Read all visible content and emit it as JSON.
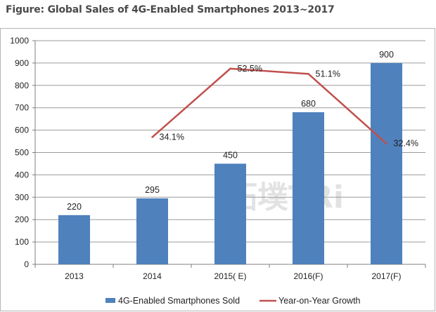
{
  "figure_title": "Figure: Global Sales of 4G-Enabled Smartphones 2013~2017",
  "watermark_text": "拓墣TRi",
  "colors": {
    "bar": "#4f81bd",
    "line": "#c0504d",
    "grid": "#9a9a9a",
    "axis": "#7f7f7f"
  },
  "chart_data": {
    "type": "bar",
    "categories": [
      "2013",
      "2014",
      "2015( E)",
      "2016(F)",
      "2017(F)"
    ],
    "series": [
      {
        "name": "4G-Enabled Smartphones Sold",
        "type": "bar",
        "values": [
          220,
          295,
          450,
          680,
          900
        ],
        "labels": [
          "220",
          "295",
          "450",
          "680",
          "900"
        ]
      },
      {
        "name": "Year-on-Year Growth",
        "type": "line",
        "values": [
          null,
          34.1,
          52.5,
          51.1,
          32.4
        ],
        "labels": [
          "",
          "34.1%",
          "52.5%",
          "51.1%",
          "32.4%"
        ]
      }
    ],
    "ylim": [
      0,
      1000
    ],
    "yticks": [
      0,
      100,
      200,
      300,
      400,
      500,
      600,
      700,
      800,
      900,
      1000
    ],
    "secondary_ylim": [
      0,
      60
    ],
    "grid": true,
    "legend": "bottom",
    "title": "",
    "xlabel": "",
    "ylabel": ""
  }
}
